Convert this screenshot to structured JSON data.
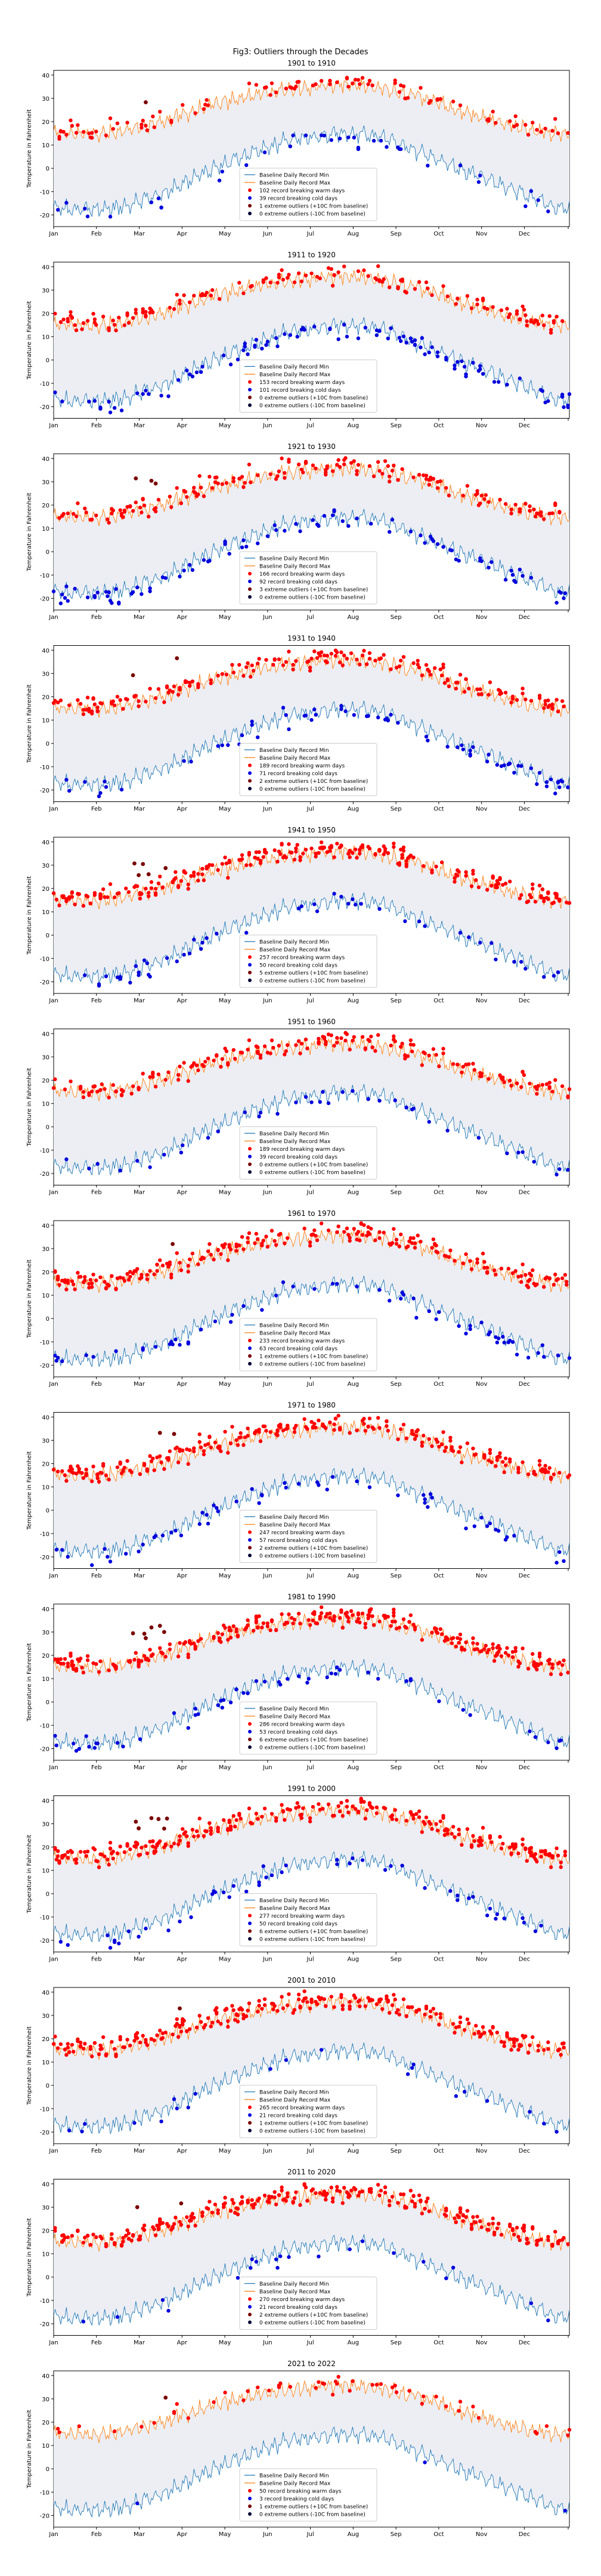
{
  "figure": {
    "title": "Fig3: Outliers through the Decades"
  },
  "colors": {
    "baseline_fill": "#eceef4",
    "min_line": "#1f77b4",
    "max_line": "#ff7f0e",
    "warm_points": "#ff0000",
    "cold_points": "#0000dd",
    "hot_outliers": "#7a0000",
    "cold_outliers": "#000033"
  },
  "chart_data": {
    "type": "line",
    "xlabel": "",
    "ylabel": "Temperature in Fahrenheit",
    "ylim": [
      -25,
      42
    ],
    "yticks": [
      -20,
      -10,
      0,
      10,
      20,
      30,
      40
    ],
    "months": [
      "Jan",
      "Feb",
      "Mar",
      "Apr",
      "May",
      "Jun",
      "Jul",
      "Aug",
      "Sep",
      "Oct",
      "Nov",
      "Dec"
    ],
    "series_names": [
      "Baseline Daily Record Min",
      "Baseline Daily Record Max"
    ],
    "baseline_min_monthly": [
      -18,
      -17,
      -11,
      -2,
      6,
      12,
      15,
      14,
      7,
      -1,
      -8,
      -16
    ],
    "baseline_max_monthly": [
      15,
      15,
      20,
      26,
      31,
      34,
      36,
      35,
      31,
      24,
      19,
      15
    ],
    "panels": [
      {
        "title": "1901 to 1910",
        "warm": 102,
        "cold": 39,
        "hot_out": 1,
        "cold_out": 0,
        "legend": [
          "102 record breaking warm days",
          "39 record breaking cold days",
          "1 extreme outliers (+10C from baseline)",
          "0 extreme outliers (-10C from baseline)"
        ]
      },
      {
        "title": "1911 to 1920",
        "warm": 153,
        "cold": 101,
        "hot_out": 0,
        "cold_out": 0,
        "legend": [
          "153 record breaking warm days",
          "101 record breaking cold days",
          "0 extreme outliers (+10C from baseline)",
          "0 extreme outliers (-10C from baseline)"
        ]
      },
      {
        "title": "1921 to 1930",
        "warm": 166,
        "cold": 92,
        "hot_out": 3,
        "cold_out": 0,
        "legend": [
          "166 record breaking warm days",
          "92 record breaking cold days",
          "3 extreme outliers (+10C from baseline)",
          "0 extreme outliers (-10C from baseline)"
        ]
      },
      {
        "title": "1931 to 1940",
        "warm": 189,
        "cold": 71,
        "hot_out": 2,
        "cold_out": 0,
        "legend": [
          "189 record breaking warm days",
          "71 record breaking cold days",
          "2 extreme outliers (+10C from baseline)",
          "0 extreme outliers (-10C from baseline)"
        ]
      },
      {
        "title": "1941 to 1950",
        "warm": 257,
        "cold": 50,
        "hot_out": 5,
        "cold_out": 0,
        "legend": [
          "257 record breaking warm days",
          "50 record breaking cold days",
          "5 extreme outliers (+10C from baseline)",
          "0 extreme outliers (-10C from baseline)"
        ]
      },
      {
        "title": "1951 to 1960",
        "warm": 189,
        "cold": 39,
        "hot_out": 0,
        "cold_out": 0,
        "legend": [
          "189 record breaking warm days",
          "39 record breaking cold days",
          "0 extreme outliers (+10C from baseline)",
          "0 extreme outliers (-10C from baseline)"
        ]
      },
      {
        "title": "1961 to 1970",
        "warm": 233,
        "cold": 63,
        "hot_out": 1,
        "cold_out": 0,
        "legend": [
          "233 record breaking warm days",
          "63 record breaking cold days",
          "1 extreme outliers (+10C from baseline)",
          "0 extreme outliers (-10C from baseline)"
        ]
      },
      {
        "title": "1971 to 1980",
        "warm": 247,
        "cold": 57,
        "hot_out": 2,
        "cold_out": 0,
        "legend": [
          "247 record breaking warm days",
          "57 record breaking cold days",
          "2 extreme outliers (+10C from baseline)",
          "0 extreme outliers (-10C from baseline)"
        ]
      },
      {
        "title": "1981 to 1990",
        "warm": 286,
        "cold": 53,
        "hot_out": 6,
        "cold_out": 0,
        "legend": [
          "286 record breaking warm days",
          "53 record breaking cold days",
          "6 extreme outliers (+10C from baseline)",
          "0 extreme outliers (-10C from baseline)"
        ]
      },
      {
        "title": "1991 to 2000",
        "warm": 277,
        "cold": 50,
        "hot_out": 6,
        "cold_out": 0,
        "legend": [
          "277 record breaking warm days",
          "50 record breaking cold days",
          "6 extreme outliers (+10C from baseline)",
          "0 extreme outliers (-10C from baseline)"
        ]
      },
      {
        "title": "2001 to 2010",
        "warm": 265,
        "cold": 21,
        "hot_out": 1,
        "cold_out": 0,
        "legend": [
          "265 record breaking warm days",
          "21 record breaking cold days",
          "1 extreme outliers (+10C from baseline)",
          "0 extreme outliers (-10C from baseline)"
        ]
      },
      {
        "title": "2011 to 2020",
        "warm": 270,
        "cold": 21,
        "hot_out": 2,
        "cold_out": 0,
        "legend": [
          "270 record breaking warm days",
          "21 record breaking cold days",
          "2 extreme outliers (+10C from baseline)",
          "0 extreme outliers (-10C from baseline)"
        ]
      },
      {
        "title": "2021 to 2022",
        "warm": 50,
        "cold": 3,
        "hot_out": 1,
        "cold_out": 0,
        "legend": [
          "50 record breaking warm days",
          "3 record breaking cold days",
          "1 extreme outliers (+10C from baseline)",
          "0 extreme outliers (-10C from baseline)"
        ]
      }
    ]
  }
}
